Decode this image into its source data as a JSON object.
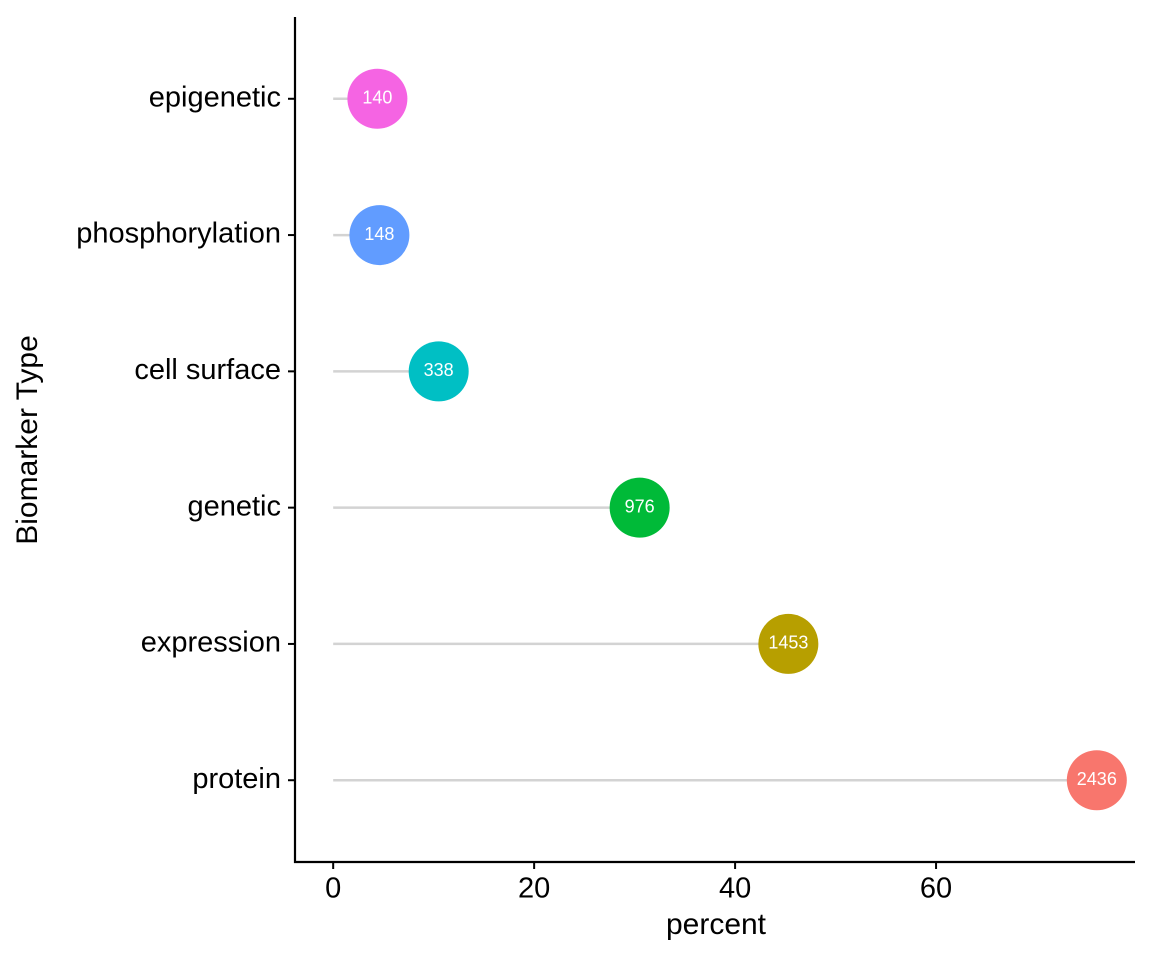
{
  "chart_data": {
    "type": "lollipop",
    "x_label": "percent",
    "y_label": "Biomarker Type",
    "categories": [
      "epigenetic",
      "phosphorylation",
      "cell surface",
      "genetic",
      "expression",
      "protein"
    ],
    "values": [
      4.4,
      4.6,
      10.5,
      30.5,
      45.3,
      76.0
    ],
    "counts": [
      140,
      148,
      338,
      976,
      1453,
      2436
    ],
    "colors": [
      "#F564E3",
      "#619CFF",
      "#00BFC4",
      "#00BA38",
      "#B79F00",
      "#F8766D"
    ],
    "stem_color": "#d3d3d3",
    "xlim": [
      -3.8,
      79.8
    ],
    "xticks": [
      0,
      20,
      40,
      60
    ]
  }
}
